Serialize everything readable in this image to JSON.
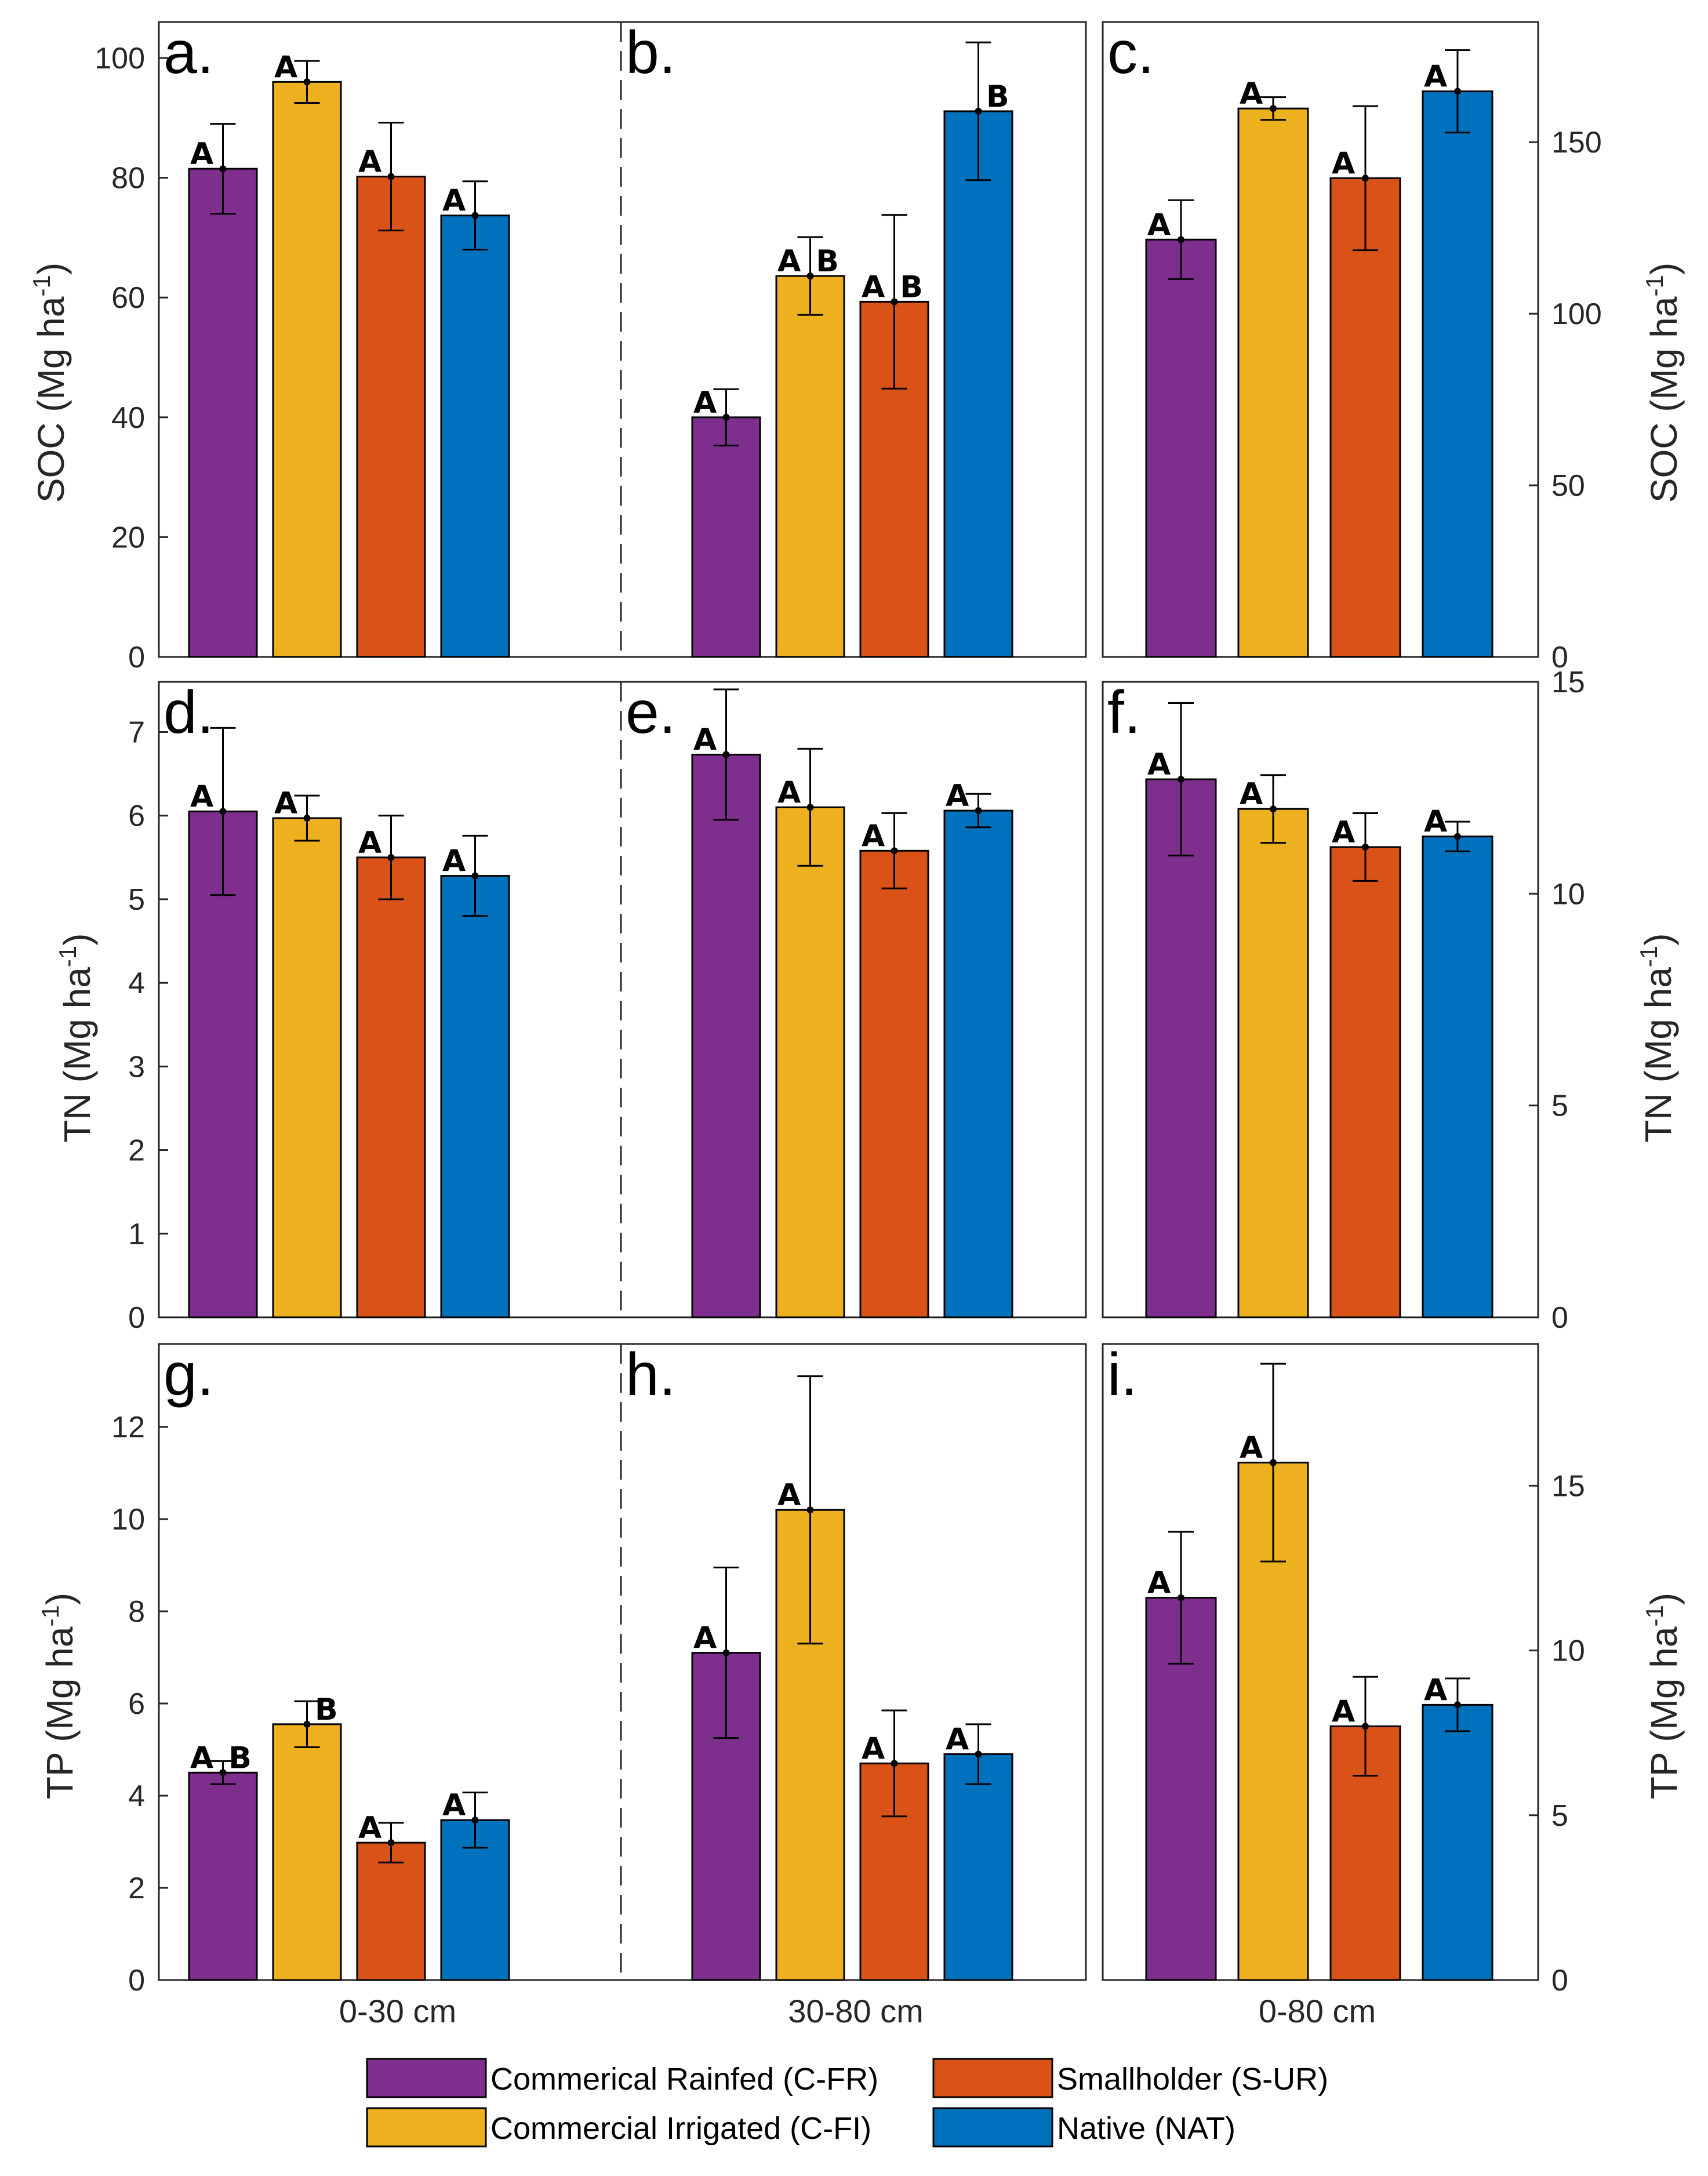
{
  "colors": {
    "commercial_rainfed": "#7E2F8E",
    "commercial_irrigated": "#EDB120",
    "smallholder": "#D95319",
    "native": "#0072BD"
  },
  "legend": [
    {
      "label": "Commerical Rainfed (C-FR)",
      "color_key": "commercial_rainfed"
    },
    {
      "label": "Smallholder (S-UR)",
      "color_key": "smallholder"
    },
    {
      "label": "Commercial Irrigated (C-FI)",
      "color_key": "commercial_irrigated"
    },
    {
      "label": "Native (NAT)",
      "color_key": "native"
    }
  ],
  "x_labels": [
    "0-30 cm",
    "30-80 cm",
    "0-80 cm"
  ],
  "y_labels": {
    "soc": {
      "main": "SOC (Mg ha",
      "sup": "-1",
      "close": ")"
    },
    "tn": {
      "main": "TN (Mg ha",
      "sup": "-1",
      "close": ")"
    },
    "tp": {
      "main": "TP (Mg ha",
      "sup": "-1",
      "close": ")"
    }
  },
  "chart_data": [
    {
      "type": "bar",
      "panel": "a.",
      "depth": "0-30 cm",
      "variable": "SOC",
      "ylim": [
        0,
        106
      ],
      "yticks": [
        0,
        20,
        40,
        60,
        80,
        100
      ],
      "categories": [
        "C-FR",
        "C-FI",
        "S-UR",
        "NAT"
      ],
      "values": [
        81.5,
        96,
        80.2,
        73.7
      ],
      "errors": [
        7.5,
        3.5,
        9,
        5.7
      ],
      "letters": [
        "A",
        "A",
        "A",
        "A"
      ]
    },
    {
      "type": "bar",
      "panel": "b.",
      "depth": "30-80 cm",
      "variable": "SOC",
      "ylim": [
        0,
        106
      ],
      "yticks": [
        0,
        20,
        40,
        60,
        80,
        100
      ],
      "categories": [
        "C-FR",
        "C-FI",
        "S-UR",
        "NAT"
      ],
      "values": [
        40,
        63.6,
        59.3,
        91.1
      ],
      "errors": [
        4.7,
        6.5,
        14.5,
        11.5
      ],
      "letters": [
        "A",
        "AB",
        "AB",
        "B"
      ]
    },
    {
      "type": "bar",
      "panel": "c.",
      "depth": "0-80 cm",
      "variable": "SOC",
      "ylim": [
        0,
        185
      ],
      "yticks": [
        0,
        50,
        100,
        150
      ],
      "categories": [
        "C-FR",
        "C-FI",
        "S-UR",
        "NAT"
      ],
      "values": [
        121.6,
        159.8,
        139.5,
        164.8
      ],
      "errors": [
        11.5,
        3.3,
        21,
        12
      ],
      "letters": [
        "A",
        "A",
        "A",
        "A"
      ]
    },
    {
      "type": "bar",
      "panel": "d.",
      "depth": "0-30 cm",
      "variable": "TN",
      "ylim": [
        0,
        7.6
      ],
      "yticks": [
        0,
        1,
        2,
        3,
        4,
        5,
        6,
        7
      ],
      "categories": [
        "C-FR",
        "C-FI",
        "S-UR",
        "NAT"
      ],
      "values": [
        6.05,
        5.97,
        5.5,
        5.28
      ],
      "errors": [
        1.0,
        0.27,
        0.5,
        0.48
      ],
      "letters": [
        "A",
        "A",
        "A",
        "A"
      ]
    },
    {
      "type": "bar",
      "panel": "e.",
      "depth": "30-80 cm",
      "variable": "TN",
      "ylim": [
        0,
        7.6
      ],
      "yticks": [
        0,
        1,
        2,
        3,
        4,
        5,
        6,
        7
      ],
      "categories": [
        "C-FR",
        "C-FI",
        "S-UR",
        "NAT"
      ],
      "values": [
        6.73,
        6.1,
        5.58,
        6.06
      ],
      "errors": [
        0.78,
        0.7,
        0.45,
        0.2
      ],
      "letters": [
        "A",
        "A",
        "A",
        "A"
      ]
    },
    {
      "type": "bar",
      "panel": "f.",
      "depth": "0-80 cm",
      "variable": "TN",
      "ylim": [
        0,
        15
      ],
      "yticks": [
        0,
        5,
        10,
        15
      ],
      "categories": [
        "C-FR",
        "C-FI",
        "S-UR",
        "NAT"
      ],
      "values": [
        12.7,
        12.0,
        11.1,
        11.35
      ],
      "errors": [
        1.8,
        0.8,
        0.8,
        0.35
      ],
      "letters": [
        "A",
        "A",
        "A",
        "A"
      ]
    },
    {
      "type": "bar",
      "panel": "g.",
      "depth": "0-30 cm",
      "variable": "TP",
      "ylim": [
        0,
        13.8
      ],
      "yticks": [
        0,
        2,
        4,
        6,
        8,
        10,
        12
      ],
      "categories": [
        "C-FR",
        "C-FI",
        "S-UR",
        "NAT"
      ],
      "values": [
        4.5,
        5.55,
        2.98,
        3.47
      ],
      "errors": [
        0.25,
        0.5,
        0.43,
        0.6
      ],
      "letters": [
        "AB",
        "B",
        "A",
        "A"
      ]
    },
    {
      "type": "bar",
      "panel": "h.",
      "depth": "30-80 cm",
      "variable": "TP",
      "ylim": [
        0,
        13.8
      ],
      "yticks": [
        0,
        2,
        4,
        6,
        8,
        10,
        12
      ],
      "categories": [
        "C-FR",
        "C-FI",
        "S-UR",
        "NAT"
      ],
      "values": [
        7.1,
        10.2,
        4.7,
        4.9
      ],
      "errors": [
        1.85,
        2.9,
        1.15,
        0.65
      ],
      "letters": [
        "A",
        "A",
        "A",
        "A"
      ]
    },
    {
      "type": "bar",
      "panel": "i.",
      "depth": "0-80 cm",
      "variable": "TP",
      "ylim": [
        0,
        19.3
      ],
      "yticks": [
        0,
        5,
        10,
        15
      ],
      "categories": [
        "C-FR",
        "C-FI",
        "S-UR",
        "NAT"
      ],
      "values": [
        11.6,
        15.7,
        7.7,
        8.35
      ],
      "errors": [
        2.0,
        3.0,
        1.5,
        0.8
      ],
      "letters": [
        "A",
        "A",
        "A",
        "A"
      ]
    }
  ]
}
